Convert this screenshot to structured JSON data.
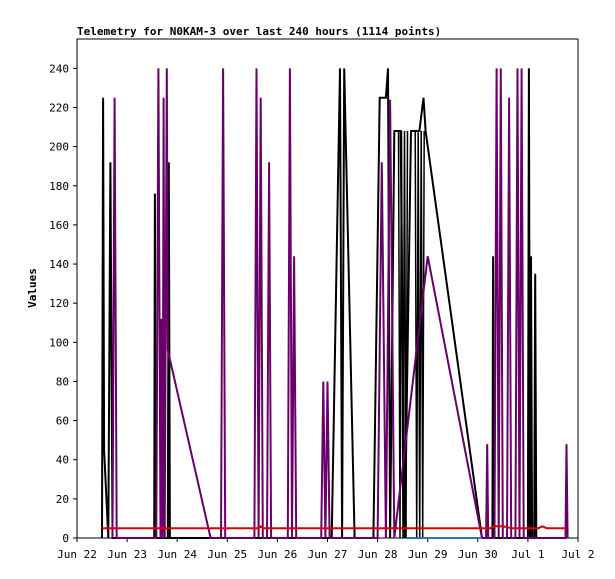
{
  "chart_data": {
    "type": "line",
    "title": "Telemetry for N0KAM-3 over last 240 hours (1114 points)",
    "xlabel": "",
    "ylabel": "Values",
    "ylim": [
      0,
      255
    ],
    "xlim": [
      "2025-06-22 00:00",
      "2025-07-02 00:00"
    ],
    "x_ticks": [
      "Jun 22",
      "Jun 23",
      "Jun 24",
      "Jun 25",
      "Jun 26",
      "Jun 27",
      "Jun 28",
      "Jun 29",
      "Jun 30",
      "Jul 1",
      "Jul 2"
    ],
    "y_ticks": [
      0,
      20,
      40,
      60,
      80,
      100,
      120,
      140,
      160,
      180,
      200,
      220,
      240
    ],
    "grid": false,
    "legend": "none",
    "series": [
      {
        "color": "#000000",
        "points": [
          [
            "2025-06-22 12:00",
            0
          ],
          [
            "2025-06-22 12:30",
            225
          ],
          [
            "2025-06-22 13:00",
            45
          ],
          [
            "2025-06-22 15:00",
            0
          ],
          [
            "2025-06-22 16:00",
            192
          ],
          [
            "2025-06-22 17:00",
            0
          ],
          [
            "2025-06-23 13:00",
            0
          ],
          [
            "2025-06-23 13:20",
            176
          ],
          [
            "2025-06-23 13:40",
            0
          ],
          [
            "2025-06-23 19:30",
            0
          ],
          [
            "2025-06-23 20:00",
            192
          ],
          [
            "2025-06-23 20:30",
            0
          ],
          [
            "2025-06-27 02:00",
            0
          ],
          [
            "2025-06-27 06:00",
            240
          ],
          [
            "2025-06-27 07:00",
            0
          ],
          [
            "2025-06-27 08:00",
            240
          ],
          [
            "2025-06-27 13:00",
            0
          ],
          [
            "2025-06-27 22:00",
            0
          ],
          [
            "2025-06-28 01:00",
            225
          ],
          [
            "2025-06-28 04:00",
            225
          ],
          [
            "2025-06-28 05:00",
            240
          ],
          [
            "2025-06-28 06:00",
            0
          ],
          [
            "2025-06-28 08:00",
            208
          ],
          [
            "2025-06-28 11:00",
            208
          ],
          [
            "2025-06-28 13:00",
            0
          ],
          [
            "2025-06-28 16:00",
            208
          ],
          [
            "2025-06-28 20:00",
            208
          ],
          [
            "2025-06-28 22:00",
            225
          ],
          [
            "2025-06-28 23:00",
            208
          ],
          [
            "2025-06-30 02:00",
            0
          ],
          [
            "2025-06-30 07:00",
            0
          ],
          [
            "2025-06-30 07:20",
            144
          ],
          [
            "2025-06-30 07:40",
            0
          ],
          [
            "2025-07-01 00:00",
            0
          ],
          [
            "2025-07-01 00:30",
            240
          ],
          [
            "2025-07-01 01:00",
            0
          ],
          [
            "2025-07-01 01:30",
            144
          ],
          [
            "2025-07-01 02:00",
            0
          ],
          [
            "2025-07-01 03:00",
            0
          ],
          [
            "2025-07-01 03:30",
            135
          ],
          [
            "2025-07-01 04:00",
            0
          ],
          [
            "2025-07-01 05:00",
            0
          ]
        ]
      },
      {
        "color": "#6a006a",
        "points": [
          [
            "2025-06-22 17:00",
            0
          ],
          [
            "2025-06-22 18:00",
            225
          ],
          [
            "2025-06-22 19:00",
            0
          ],
          [
            "2025-06-23 14:00",
            0
          ],
          [
            "2025-06-23 15:00",
            240
          ],
          [
            "2025-06-23 16:00",
            0
          ],
          [
            "2025-06-23 16:30",
            112
          ],
          [
            "2025-06-23 17:00",
            0
          ],
          [
            "2025-06-23 17:30",
            225
          ],
          [
            "2025-06-23 18:00",
            0
          ],
          [
            "2025-06-23 19:00",
            240
          ],
          [
            "2025-06-23 19:30",
            96
          ],
          [
            "2025-06-24 16:00",
            0
          ],
          [
            "2025-06-24 21:00",
            0
          ],
          [
            "2025-06-24 22:00",
            240
          ],
          [
            "2025-06-24 23:00",
            0
          ],
          [
            "2025-06-25 13:00",
            0
          ],
          [
            "2025-06-25 14:00",
            240
          ],
          [
            "2025-06-25 15:00",
            0
          ],
          [
            "2025-06-25 16:00",
            225
          ],
          [
            "2025-06-25 17:00",
            0
          ],
          [
            "2025-06-25 19:00",
            0
          ],
          [
            "2025-06-25 20:00",
            192
          ],
          [
            "2025-06-25 21:00",
            0
          ],
          [
            "2025-06-26 05:00",
            0
          ],
          [
            "2025-06-26 06:00",
            240
          ],
          [
            "2025-06-26 07:00",
            0
          ],
          [
            "2025-06-26 08:00",
            144
          ],
          [
            "2025-06-26 09:00",
            0
          ],
          [
            "2025-06-26 21:00",
            0
          ],
          [
            "2025-06-26 22:00",
            80
          ],
          [
            "2025-06-26 23:00",
            0
          ],
          [
            "2025-06-27 00:00",
            80
          ],
          [
            "2025-06-27 01:00",
            0
          ],
          [
            "2025-06-28 00:00",
            0
          ],
          [
            "2025-06-28 02:00",
            192
          ],
          [
            "2025-06-28 04:00",
            0
          ],
          [
            "2025-06-28 06:00",
            224
          ],
          [
            "2025-06-28 08:00",
            0
          ],
          [
            "2025-06-29 00:00",
            144
          ],
          [
            "2025-06-30 02:00",
            0
          ],
          [
            "2025-06-30 04:00",
            0
          ],
          [
            "2025-06-30 04:30",
            48
          ],
          [
            "2025-06-30 05:00",
            0
          ],
          [
            "2025-06-30 08:00",
            0
          ],
          [
            "2025-06-30 09:00",
            240
          ],
          [
            "2025-06-30 10:00",
            0
          ],
          [
            "2025-06-30 11:00",
            240
          ],
          [
            "2025-06-30 12:00",
            0
          ],
          [
            "2025-06-30 14:00",
            0
          ],
          [
            "2025-06-30 15:00",
            225
          ],
          [
            "2025-06-30 16:00",
            0
          ],
          [
            "2025-06-30 18:00",
            0
          ],
          [
            "2025-06-30 19:00",
            240
          ],
          [
            "2025-06-30 20:00",
            0
          ],
          [
            "2025-06-30 21:00",
            240
          ],
          [
            "2025-06-30 22:00",
            0
          ],
          [
            "2025-07-01 18:00",
            0
          ],
          [
            "2025-07-01 18:30",
            48
          ],
          [
            "2025-07-01 19:00",
            0
          ]
        ]
      },
      {
        "color": "#dd0000",
        "points": [
          [
            "2025-06-22 12:00",
            5
          ],
          [
            "2025-06-25 15:00",
            5
          ],
          [
            "2025-06-25 16:00",
            6
          ],
          [
            "2025-06-25 17:00",
            5
          ],
          [
            "2025-06-30 06:00",
            5
          ],
          [
            "2025-06-30 08:00",
            6
          ],
          [
            "2025-06-30 12:00",
            6
          ],
          [
            "2025-06-30 16:00",
            5
          ],
          [
            "2025-07-01 05:00",
            5
          ],
          [
            "2025-07-01 07:00",
            6
          ],
          [
            "2025-07-01 09:00",
            5
          ],
          [
            "2025-07-01 18:00",
            5
          ]
        ]
      },
      {
        "color": "#3070c0",
        "points": [
          [
            "2025-06-28 14:00",
            0
          ],
          [
            "2025-06-29 00:00",
            0
          ],
          [
            "2025-06-30 02:00",
            0
          ]
        ]
      }
    ],
    "dense_oscillation": {
      "color": "#000000",
      "regions": [
        {
          "from": "2025-06-28 10:00",
          "to": "2025-06-28 15:00",
          "low": 0,
          "high": 208
        },
        {
          "from": "2025-06-28 18:00",
          "to": "2025-06-28 23:00",
          "low": 0,
          "high": 208
        }
      ]
    }
  }
}
